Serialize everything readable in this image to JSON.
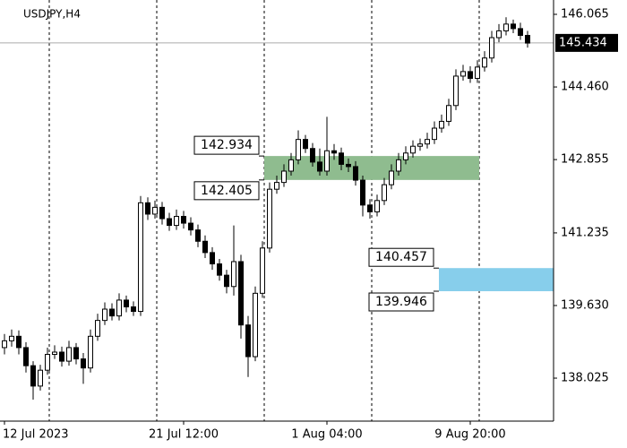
{
  "chart_data": {
    "type": "candlestick",
    "title": "USDJPY,H4",
    "categories": [
      "12 Jul 2023",
      null,
      null,
      null,
      null,
      null,
      null,
      null,
      null,
      null,
      null,
      null,
      null,
      null,
      null,
      null,
      null,
      null,
      null,
      null,
      null,
      null,
      null,
      null,
      null,
      "21 Jul 12:00",
      null,
      null,
      null,
      null,
      null,
      null,
      null,
      null,
      null,
      null,
      null,
      null,
      null,
      null,
      null,
      null,
      null,
      null,
      null,
      "1 Aug 04:00",
      null,
      null,
      null,
      null,
      null,
      null,
      null,
      null,
      null,
      null,
      null,
      null,
      null,
      null,
      null,
      null,
      null,
      null,
      null,
      "9 Aug 20:00",
      null,
      null,
      null,
      null,
      null,
      null,
      null,
      null
    ],
    "open": [
      138.7,
      138.85,
      138.95,
      138.7,
      138.3,
      137.85,
      138.2,
      138.55,
      138.6,
      138.4,
      138.7,
      138.45,
      138.25,
      138.95,
      139.3,
      139.55,
      139.4,
      139.75,
      139.6,
      139.5,
      141.9,
      141.65,
      141.8,
      141.55,
      141.4,
      141.6,
      141.45,
      141.3,
      141.05,
      140.8,
      140.55,
      140.3,
      140.05,
      140.6,
      139.2,
      138.5,
      139.9,
      140.9,
      142.2,
      142.35,
      142.6,
      142.85,
      143.3,
      143.1,
      142.8,
      142.6,
      143.05,
      143.0,
      142.75,
      142.7,
      142.4,
      141.85,
      141.7,
      141.95,
      142.3,
      142.6,
      142.85,
      143.0,
      143.15,
      143.2,
      143.3,
      143.55,
      143.7,
      144.05,
      144.7,
      144.8,
      144.65,
      144.9,
      145.1,
      145.55,
      145.7,
      145.85,
      145.75,
      145.6
    ],
    "high": [
      139.0,
      139.1,
      139.08,
      138.82,
      138.4,
      138.32,
      138.7,
      138.75,
      138.72,
      138.85,
      138.8,
      138.58,
      139.1,
      139.45,
      139.7,
      139.68,
      139.9,
      139.85,
      139.72,
      142.05,
      142.02,
      141.95,
      141.92,
      141.68,
      141.75,
      141.72,
      141.58,
      141.42,
      141.18,
      140.92,
      140.66,
      140.42,
      141.4,
      140.75,
      139.4,
      140.05,
      141.05,
      142.35,
      142.5,
      142.75,
      143.0,
      143.5,
      143.4,
      143.22,
      143.1,
      143.8,
      143.2,
      143.12,
      142.88,
      142.82,
      142.5,
      141.98,
      142.08,
      142.45,
      142.75,
      143.0,
      143.15,
      143.28,
      143.32,
      143.45,
      143.7,
      143.85,
      144.2,
      144.85,
      144.95,
      144.92,
      145.05,
      145.25,
      145.7,
      145.85,
      146.0,
      145.95,
      145.88,
      145.7
    ],
    "low": [
      138.55,
      138.72,
      138.55,
      138.15,
      137.55,
      137.75,
      138.1,
      138.45,
      138.28,
      138.3,
      138.33,
      137.9,
      138.15,
      138.85,
      139.2,
      139.3,
      139.3,
      139.48,
      139.4,
      139.4,
      141.52,
      141.55,
      141.42,
      141.28,
      141.3,
      141.33,
      141.18,
      140.92,
      140.68,
      140.42,
      140.18,
      139.9,
      139.85,
      138.9,
      138.05,
      138.4,
      139.8,
      140.8,
      142.1,
      142.25,
      142.5,
      142.75,
      143.0,
      142.7,
      142.5,
      142.5,
      142.85,
      142.62,
      142.58,
      142.28,
      141.6,
      141.55,
      141.6,
      141.85,
      142.2,
      142.5,
      142.75,
      142.9,
      143.05,
      143.1,
      143.2,
      143.45,
      143.6,
      143.95,
      144.6,
      144.55,
      144.55,
      144.8,
      145.0,
      145.45,
      145.6,
      145.65,
      145.5,
      145.33
    ],
    "close": [
      138.85,
      138.95,
      138.7,
      138.3,
      137.85,
      138.2,
      138.55,
      138.6,
      138.4,
      138.7,
      138.45,
      138.25,
      138.95,
      139.3,
      139.55,
      139.4,
      139.75,
      139.6,
      139.5,
      141.9,
      141.65,
      141.8,
      141.55,
      141.4,
      141.6,
      141.45,
      141.3,
      141.05,
      140.8,
      140.55,
      140.3,
      140.05,
      140.6,
      139.2,
      138.5,
      139.9,
      140.9,
      142.2,
      142.35,
      142.6,
      142.85,
      143.3,
      143.1,
      142.8,
      142.6,
      143.05,
      143.0,
      142.75,
      142.7,
      142.4,
      141.85,
      141.7,
      141.95,
      142.3,
      142.6,
      142.85,
      143.0,
      143.15,
      143.2,
      143.3,
      143.55,
      143.7,
      144.05,
      144.7,
      144.8,
      144.65,
      144.9,
      145.1,
      145.55,
      145.7,
      145.85,
      145.75,
      145.6,
      145.43
    ],
    "up_color": "#ffffff",
    "down_color": "#000000",
    "ylim": [
      137.075,
      146.382
    ],
    "yticks": [
      146.065,
      {
        "value": 144.46,
        "label": "144.460"
      },
      142.855,
      141.235,
      {
        "value": 139.63,
        "label": "139.630"
      },
      138.025
    ],
    "last_price": 145.434,
    "zones": [
      {
        "upper": 142.934,
        "lower": 142.405,
        "color": "#8fbc8f"
      },
      {
        "upper": 140.457,
        "lower": 139.946,
        "color": "#87ceeb"
      }
    ]
  }
}
